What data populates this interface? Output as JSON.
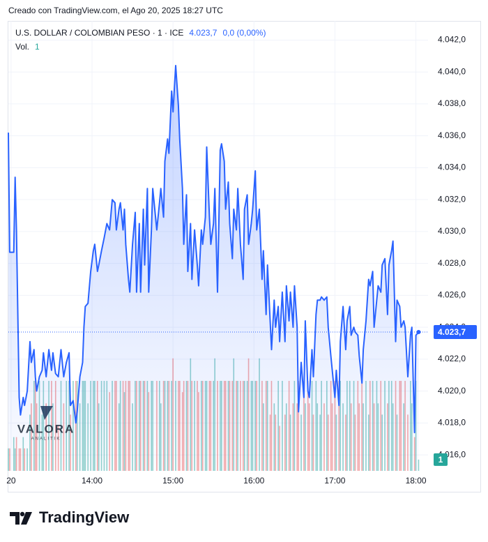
{
  "chart_data": {
    "type": "line",
    "header": "Creado con TradingView.com, el Ago 20, 2025 18:27 UTC",
    "change": "0,0 (0,00%)",
    "last_price": {
      "value": 4023.7,
      "label": "4.023,7"
    },
    "x": [
      778,
      779,
      782,
      783,
      784,
      786,
      787,
      789,
      790,
      792,
      794,
      795,
      797,
      798,
      799,
      801,
      803,
      804,
      806,
      808,
      810,
      811,
      813,
      815,
      817,
      819,
      821,
      823,
      824,
      826,
      828,
      829,
      831,
      833,
      834,
      835,
      837,
      839,
      841,
      842,
      844,
      845,
      847,
      849,
      851,
      853,
      855,
      857,
      858,
      860,
      861,
      863,
      864,
      865,
      867,
      868,
      870,
      872,
      873,
      875,
      876,
      878,
      879,
      881,
      882,
      884,
      885,
      888,
      890,
      891,
      893,
      894,
      896,
      897,
      899,
      900,
      902,
      904,
      905,
      907,
      908,
      910,
      911,
      913,
      914,
      916,
      918,
      919,
      921,
      922,
      924,
      925,
      927,
      928,
      930,
      931,
      933,
      935,
      936,
      938,
      939,
      941,
      942,
      944,
      945,
      947,
      948,
      950,
      952,
      953,
      955,
      956,
      958,
      959,
      961,
      962,
      964,
      966,
      967,
      969,
      970,
      972,
      973,
      975,
      976,
      978,
      979,
      981,
      983,
      984,
      986,
      987,
      989,
      990,
      992,
      993,
      995,
      997,
      998,
      1000,
      1001,
      1003,
      1004,
      1006,
      1007,
      1009,
      1010,
      1012,
      1014,
      1015,
      1017,
      1018,
      1020,
      1021,
      1023,
      1024,
      1026,
      1028,
      1029,
      1031,
      1032,
      1034,
      1035,
      1037,
      1038,
      1040,
      1041,
      1043,
      1045,
      1046,
      1048,
      1049,
      1051,
      1052,
      1054,
      1055,
      1057,
      1059,
      1060,
      1062,
      1063,
      1065,
      1066,
      1068,
      1069,
      1071,
      1072,
      1074,
      1076,
      1077,
      1079,
      1080,
      1082
    ],
    "series": [
      {
        "name": "U.S. DOLLAR / COLOMBIAN PESO · 1 · ICE",
        "color": "#2962ff",
        "values": [
          4036.2,
          4028.7,
          4028.7,
          4033.4,
          4030.1,
          4019.6,
          4018.5,
          4019.6,
          4019.1,
          4020.0,
          4023.1,
          4021.8,
          4022.6,
          4020.9,
          4020.0,
          4020.9,
          4021.3,
          4022.4,
          4020.9,
          4022.6,
          4021.3,
          4022.4,
          4021.1,
          4020.9,
          4022.6,
          4020.9,
          4021.8,
          4022.4,
          4019.1,
          4019.4,
          4018.0,
          4018.7,
          4020.9,
          4021.8,
          4024.0,
          4025.3,
          4025.5,
          4027.5,
          4028.8,
          4029.2,
          4027.5,
          4027.9,
          4028.8,
          4029.6,
          4030.5,
          4030.1,
          4032.0,
          4031.8,
          4030.1,
          4031.4,
          4031.8,
          4030.1,
          4031.4,
          4029.2,
          4027.0,
          4026.2,
          4029.2,
          4031.2,
          4026.2,
          4030.5,
          4026.2,
          4031.4,
          4027.9,
          4032.7,
          4026.2,
          4030.1,
          4032.7,
          4030.1,
          4031.8,
          4032.7,
          4030.9,
          4034.4,
          4035.8,
          4034.9,
          4038.8,
          4037.5,
          4040.4,
          4037.9,
          4035.8,
          4032.7,
          4029.2,
          4032.3,
          4027.5,
          4030.5,
          4027.0,
          4030.1,
          4027.9,
          4026.6,
          4030.1,
          4029.2,
          4030.9,
          4035.3,
          4030.9,
          4029.2,
          4030.5,
          4032.7,
          4026.2,
          4035.1,
          4035.5,
          4034.4,
          4031.4,
          4033.1,
          4030.5,
          4028.3,
          4031.4,
          4030.1,
          4032.7,
          4029.2,
          4027.0,
          4031.4,
          4032.3,
          4029.2,
          4030.5,
          4031.4,
          4033.8,
          4030.1,
          4031.4,
          4027.0,
          4028.8,
          4024.8,
          4027.9,
          4024.4,
          4022.6,
          4025.7,
          4024.0,
          4025.3,
          4023.1,
          4026.2,
          4023.1,
          4026.6,
          4024.4,
          4026.2,
          4024.0,
          4026.6,
          4024.0,
          4018.7,
          4021.8,
          4019.6,
          4024.4,
          4020.0,
          4019.6,
          4022.6,
          4020.9,
          4024.8,
          4025.7,
          4025.7,
          4025.9,
          4025.7,
          4025.9,
          4024.0,
          4022.2,
          4021.3,
          4019.6,
          4021.3,
          4019.1,
          4023.1,
          4025.3,
          4022.6,
          4024.4,
          4025.3,
          4023.5,
          4024.0,
          4023.7,
          4023.5,
          4022.2,
          4020.5,
          4022.6,
          4024.4,
          4027.0,
          4026.6,
          4027.5,
          4024.0,
          4025.7,
          4026.6,
          4026.2,
          4027.9,
          4028.3,
          4024.8,
          4027.9,
          4028.8,
          4029.4,
          4023.1,
          4025.7,
          4025.3,
          4024.0,
          4024.4,
          4024.0,
          4020.9,
          4023.5,
          4024.0,
          4017.4,
          4023.5,
          4023.7
        ]
      }
    ],
    "volume": {
      "name": "Vol.",
      "up_color": "#26a69a",
      "down_color": "#ef5350",
      "ylim": [
        0,
        40
      ],
      "values": [
        2,
        2,
        3,
        2,
        3,
        2,
        2,
        3,
        2,
        2,
        5,
        6,
        8,
        8,
        6,
        8,
        5,
        8,
        6,
        8,
        8,
        6,
        8,
        4,
        8,
        6,
        8,
        8,
        5,
        8,
        8,
        8,
        6,
        8,
        8,
        8,
        6,
        8,
        8,
        8,
        8,
        6,
        8,
        8,
        8,
        7,
        8,
        8,
        8,
        6,
        8,
        8,
        7,
        8,
        8,
        8,
        6,
        8,
        8,
        8,
        8,
        8,
        8,
        8,
        7,
        8,
        8,
        8,
        8,
        6,
        8,
        8,
        8,
        8,
        8,
        10,
        8,
        8,
        8,
        7,
        8,
        8,
        8,
        10,
        8,
        8,
        8,
        7,
        8,
        8,
        8,
        8,
        8,
        8,
        8,
        10,
        8,
        8,
        8,
        8,
        8,
        8,
        8,
        8,
        10,
        8,
        8,
        8,
        8,
        8,
        8,
        10,
        8,
        8,
        8,
        8,
        10,
        8,
        6,
        8,
        8,
        5,
        8,
        6,
        5,
        8,
        4,
        8,
        5,
        6,
        8,
        5,
        6,
        8,
        6,
        8,
        5,
        8,
        6,
        8,
        6,
        8,
        5,
        8,
        6,
        5,
        8,
        6,
        8,
        5,
        8,
        6,
        8,
        5,
        8,
        8,
        6,
        5,
        8,
        8,
        6,
        8,
        5,
        8,
        6,
        8,
        6,
        8,
        5,
        8,
        8,
        6,
        8,
        6,
        8,
        5,
        8,
        6,
        8,
        8,
        6,
        8,
        5,
        8,
        8,
        6,
        8,
        5,
        8,
        6,
        3,
        8,
        1
      ]
    },
    "xlim": [
      778,
      1089
    ],
    "ylim": [
      4015.0,
      4043.2
    ],
    "xticks": [
      {
        "value": 780,
        "label": "20"
      },
      {
        "value": 840,
        "label": "14:00"
      },
      {
        "value": 900,
        "label": "15:00"
      },
      {
        "value": 960,
        "label": "16:00"
      },
      {
        "value": 1020,
        "label": "17:00"
      },
      {
        "value": 1080,
        "label": "18:00"
      }
    ],
    "yticks": [
      {
        "value": 4016,
        "label": "4.016,0"
      },
      {
        "value": 4018,
        "label": "4.018,0"
      },
      {
        "value": 4020,
        "label": "4.020,0"
      },
      {
        "value": 4022,
        "label": "4.022,0"
      },
      {
        "value": 4024,
        "label": "4.024,0"
      },
      {
        "value": 4026,
        "label": "4.026,0"
      },
      {
        "value": 4028,
        "label": "4.028,0"
      },
      {
        "value": 4030,
        "label": "4.030,0"
      },
      {
        "value": 4032,
        "label": "4.032,0"
      },
      {
        "value": 4034,
        "label": "4.034,0"
      },
      {
        "value": 4036,
        "label": "4.036,0"
      },
      {
        "value": 4038,
        "label": "4.038,0"
      },
      {
        "value": 4040,
        "label": "4.040,0"
      },
      {
        "value": 4042,
        "label": "4.042,0"
      }
    ],
    "grid": true,
    "watermark": {
      "name": "VALORA",
      "sub": "ANALITIK"
    },
    "footer": "TradingView"
  }
}
